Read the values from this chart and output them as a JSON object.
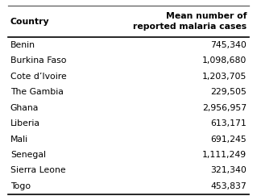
{
  "col1_header": "Country",
  "col2_header": "Mean number of\nreported malaria cases",
  "countries": [
    "Benin",
    "Burkina Faso",
    "Cote d’Ivoire",
    "The Gambia",
    "Ghana",
    "Liberia",
    "Mali",
    "Senegal",
    "Sierra Leone",
    "Togo"
  ],
  "values": [
    "745,340",
    "1,098,680",
    "1,203,705",
    "229,505",
    "2,956,957",
    "613,171",
    "691,245",
    "1,111,249",
    "321,340",
    "453,837"
  ],
  "bg_color": "#ffffff",
  "line_color": "#5a5a5a",
  "text_color": "#000000",
  "header_fontsize": 7.8,
  "data_fontsize": 7.8,
  "fig_width": 3.19,
  "fig_height": 2.43,
  "dpi": 100
}
